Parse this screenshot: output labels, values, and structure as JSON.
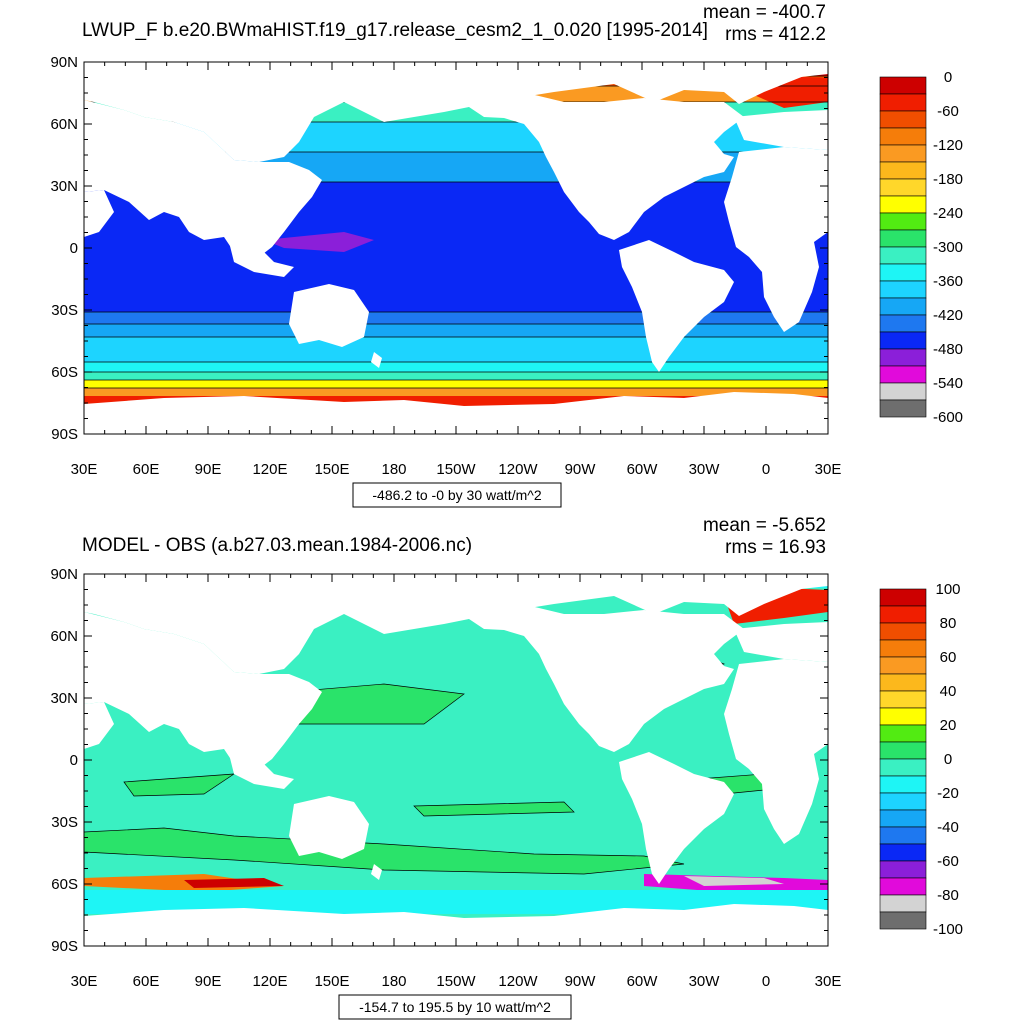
{
  "colors": {
    "land": "#ffffff",
    "frame": "#000000",
    "palette": [
      "#6e6e6e",
      "#d3d3d3",
      "#e10adb",
      "#8b1fd9",
      "#0a28f5",
      "#1e78f0",
      "#16a7f5",
      "#1dd4ff",
      "#1ef5f5",
      "#3af0c2",
      "#2ae36a",
      "#52eb12",
      "#ffff00",
      "#ffd72a",
      "#fcb81c",
      "#fa9a22",
      "#f57d0a",
      "#f04e00",
      "#f01e00",
      "#cd0000"
    ]
  },
  "panels": [
    {
      "title": "LWUP_F b.e20.BWmaHIST.f19_g17.release_cesm2_1_0.020 [1995-2014]",
      "mean_label": "mean = -400.7",
      "rms_label": "rms = 412.2",
      "info_label": "-486.2 to -0 by 30 watt/m^2",
      "colorbar_labels": [
        "0",
        "-60",
        "-120",
        "-180",
        "-240",
        "-300",
        "-360",
        "-420",
        "-480",
        "-540",
        "-600"
      ]
    },
    {
      "title": "MODEL - OBS (a.b27.03.mean.1984-2006.nc)",
      "mean_label": "mean = -5.652",
      "rms_label": "rms = 16.93",
      "info_label": "-154.7 to 195.5 by 10 watt/m^2",
      "colorbar_labels": [
        "100",
        "80",
        "60",
        "40",
        "20",
        "0",
        "-20",
        "-40",
        "-60",
        "-80",
        "-100"
      ]
    }
  ],
  "axes": {
    "lat_labels": [
      "90N",
      "60N",
      "30N",
      "0",
      "30S",
      "60S",
      "90S"
    ],
    "lon_labels": [
      "30E",
      "60E",
      "90E",
      "120E",
      "150E",
      "180",
      "150W",
      "120W",
      "90W",
      "60W",
      "30W",
      "0",
      "30E"
    ]
  }
}
